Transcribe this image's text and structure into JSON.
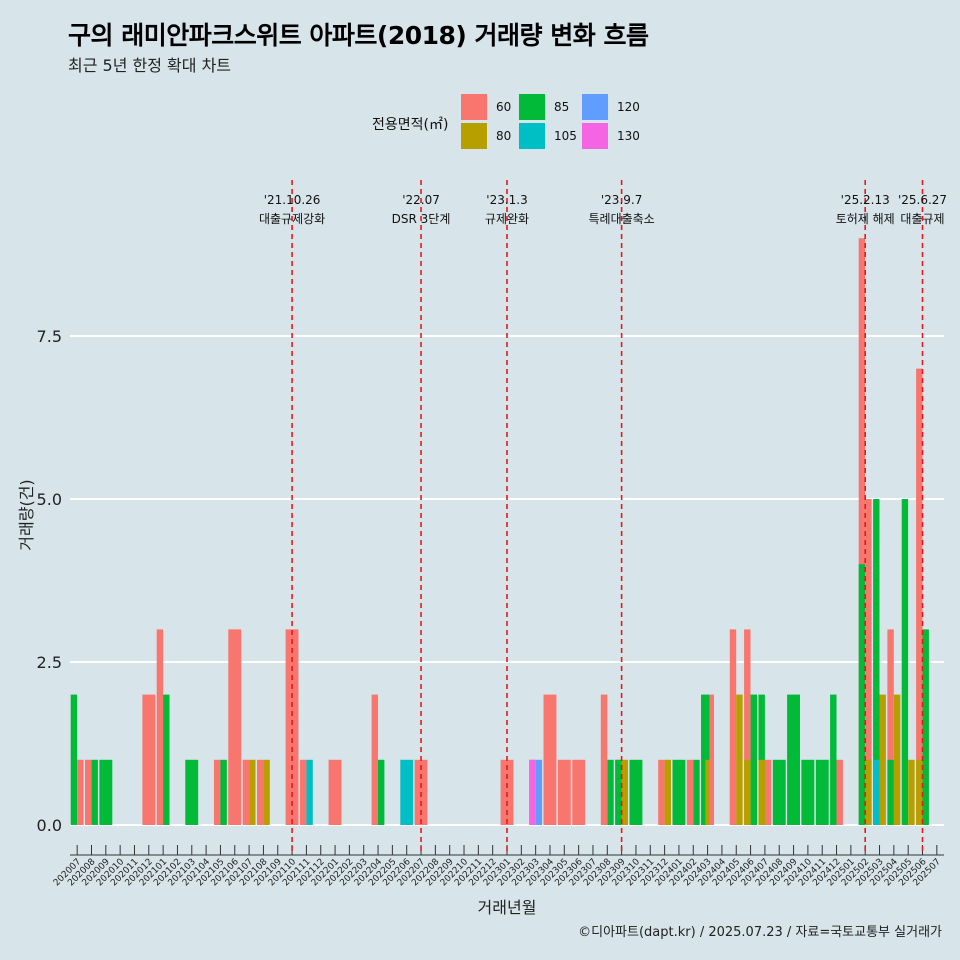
{
  "title": "구의 래미안파크스위트 아파트(2018) 거래량 변화 흐름",
  "subtitle": "최근 5년 한정 확대 차트",
  "caption": "©디아파트(dapt.kr) / 2025.07.23 / 자료=국토교통부 실거래가",
  "legend": {
    "title": "전용면적(㎡)",
    "items": [
      {
        "label": "60",
        "color": "#F8766D"
      },
      {
        "label": "80",
        "color": "#B79F00"
      },
      {
        "label": "85",
        "color": "#00BA38"
      },
      {
        "label": "105",
        "color": "#00BFC4"
      },
      {
        "label": "120",
        "color": "#619CFF"
      },
      {
        "label": "130",
        "color": "#F564E3"
      }
    ]
  },
  "chart_data": {
    "type": "bar",
    "xlabel": "거래년월",
    "ylabel": "거래량(건)",
    "ylim": [
      0,
      9
    ],
    "yticks": [
      0,
      2.5,
      5,
      7.5
    ],
    "ytick_labels": [
      "0.0",
      "2.5",
      "5.0",
      "7.5"
    ],
    "grid": true,
    "legend_position": "top",
    "categories": [
      "202007",
      "202008",
      "202009",
      "202010",
      "202011",
      "202012",
      "202101",
      "202102",
      "202103",
      "202104",
      "202105",
      "202106",
      "202107",
      "202108",
      "202109",
      "202110",
      "202111",
      "202112",
      "202201",
      "202202",
      "202203",
      "202204",
      "202205",
      "202206",
      "202207",
      "202208",
      "202209",
      "202210",
      "202211",
      "202212",
      "202301",
      "202302",
      "202303",
      "202304",
      "202305",
      "202306",
      "202307",
      "202308",
      "202309",
      "202310",
      "202311",
      "202312",
      "202401",
      "202402",
      "202403",
      "202404",
      "202405",
      "202406",
      "202407",
      "202408",
      "202409",
      "202410",
      "202411",
      "202412",
      "202501",
      "202502",
      "202503",
      "202504",
      "202505",
      "202506",
      "202507"
    ],
    "bars": [
      {
        "month": "202007",
        "segments": [
          {
            "area": "60",
            "count": 1
          },
          {
            "area": "85",
            "count": 2
          }
        ]
      },
      {
        "month": "202008",
        "segments": [
          {
            "area": "60",
            "count": 1
          },
          {
            "area": "85",
            "count": 1
          }
        ]
      },
      {
        "month": "202009",
        "segments": [
          {
            "area": "85",
            "count": 1
          }
        ]
      },
      {
        "month": "202012",
        "segments": [
          {
            "area": "60",
            "count": 2
          }
        ]
      },
      {
        "month": "202101",
        "segments": [
          {
            "area": "60",
            "count": 3
          },
          {
            "area": "85",
            "count": 2
          }
        ]
      },
      {
        "month": "202103",
        "segments": [
          {
            "area": "85",
            "count": 1
          }
        ]
      },
      {
        "month": "202105",
        "segments": [
          {
            "area": "60",
            "count": 1
          },
          {
            "area": "85",
            "count": 1
          }
        ]
      },
      {
        "month": "202106",
        "segments": [
          {
            "area": "60",
            "count": 3
          }
        ]
      },
      {
        "month": "202107",
        "segments": [
          {
            "area": "60",
            "count": 1
          },
          {
            "area": "80",
            "count": 1
          }
        ]
      },
      {
        "month": "202108",
        "segments": [
          {
            "area": "60",
            "count": 1
          },
          {
            "area": "80",
            "count": 1
          }
        ]
      },
      {
        "month": "202110",
        "segments": [
          {
            "area": "60",
            "count": 3
          }
        ]
      },
      {
        "month": "202111",
        "segments": [
          {
            "area": "60",
            "count": 1
          },
          {
            "area": "105",
            "count": 1
          }
        ]
      },
      {
        "month": "202201",
        "segments": [
          {
            "area": "60",
            "count": 1
          }
        ]
      },
      {
        "month": "202204",
        "segments": [
          {
            "area": "60",
            "count": 2
          },
          {
            "area": "85",
            "count": 1
          }
        ]
      },
      {
        "month": "202206",
        "segments": [
          {
            "area": "105",
            "count": 1
          }
        ]
      },
      {
        "month": "202207",
        "segments": [
          {
            "area": "60",
            "count": 1
          }
        ]
      },
      {
        "month": "202301",
        "segments": [
          {
            "area": "60",
            "count": 1
          }
        ]
      },
      {
        "month": "202303",
        "segments": [
          {
            "area": "60",
            "count": 1
          },
          {
            "area": "120",
            "count": 1
          },
          {
            "area": "130",
            "count": 1
          }
        ]
      },
      {
        "month": "202304",
        "segments": [
          {
            "area": "60",
            "count": 2
          }
        ]
      },
      {
        "month": "202305",
        "segments": [
          {
            "area": "60",
            "count": 1
          }
        ]
      },
      {
        "month": "202306",
        "segments": [
          {
            "area": "60",
            "count": 1
          }
        ]
      },
      {
        "month": "202308",
        "segments": [
          {
            "area": "60",
            "count": 2
          },
          {
            "area": "85",
            "count": 1
          }
        ]
      },
      {
        "month": "202309",
        "segments": [
          {
            "area": "60",
            "count": 1
          },
          {
            "area": "80",
            "count": 1
          },
          {
            "area": "85",
            "count": 1
          }
        ]
      },
      {
        "month": "202310",
        "segments": [
          {
            "area": "85",
            "count": 1
          }
        ]
      },
      {
        "month": "202312",
        "segments": [
          {
            "area": "60",
            "count": 1
          },
          {
            "area": "80",
            "count": 1
          }
        ]
      },
      {
        "month": "202401",
        "segments": [
          {
            "area": "85",
            "count": 1
          }
        ]
      },
      {
        "month": "202402",
        "segments": [
          {
            "area": "60",
            "count": 1
          },
          {
            "area": "85",
            "count": 1
          }
        ]
      },
      {
        "month": "202403",
        "segments": [
          {
            "area": "60",
            "count": 2
          },
          {
            "area": "85",
            "count": 2
          },
          {
            "area": "60",
            "count": 2
          },
          {
            "area": "80",
            "count": 1
          },
          {
            "area": "85",
            "count": 2
          }
        ]
      },
      {
        "month": "202405",
        "segments": [
          {
            "area": "60",
            "count": 1
          },
          {
            "area": "80",
            "count": 2
          },
          {
            "area": "60",
            "count": 3
          }
        ]
      },
      {
        "month": "202406",
        "segments": [
          {
            "area": "85",
            "count": 2
          },
          {
            "area": "60",
            "count": 3
          },
          {
            "area": "80",
            "count": 1
          }
        ]
      },
      {
        "month": "202407",
        "segments": [
          {
            "area": "85",
            "count": 2
          },
          {
            "area": "60",
            "count": 1
          },
          {
            "area": "80",
            "count": 1
          }
        ]
      },
      {
        "month": "202408",
        "segments": [
          {
            "area": "85",
            "count": 1
          }
        ]
      },
      {
        "month": "202409",
        "segments": [
          {
            "area": "85",
            "count": 2
          }
        ]
      },
      {
        "month": "202410",
        "segments": [
          {
            "area": "85",
            "count": 1
          }
        ]
      },
      {
        "month": "202411",
        "segments": [
          {
            "area": "85",
            "count": 1
          }
        ]
      },
      {
        "month": "202412",
        "segments": [
          {
            "area": "60",
            "count": 1
          },
          {
            "area": "85",
            "count": 2
          }
        ]
      },
      {
        "month": "202502",
        "segments": [
          {
            "area": "60",
            "count": 5
          },
          {
            "area": "80",
            "count": 1
          },
          {
            "area": "60",
            "count": 9
          },
          {
            "area": "85",
            "count": 4
          }
        ]
      },
      {
        "month": "202503",
        "segments": [
          {
            "area": "80",
            "count": 2
          },
          {
            "area": "85",
            "count": 5
          },
          {
            "area": "105",
            "count": 1
          }
        ]
      },
      {
        "month": "202504",
        "segments": [
          {
            "area": "60",
            "count": 3
          },
          {
            "area": "80",
            "count": 2
          },
          {
            "area": "85",
            "count": 1
          }
        ]
      },
      {
        "month": "202505",
        "segments": [
          {
            "area": "80",
            "count": 1
          },
          {
            "area": "85",
            "count": 5
          }
        ]
      },
      {
        "month": "202506",
        "segments": [
          {
            "area": "60",
            "count": 7
          },
          {
            "area": "80",
            "count": 1
          },
          {
            "area": "85",
            "count": 3
          }
        ]
      }
    ],
    "events": [
      {
        "month": "202110",
        "date": "'21.10.26",
        "label": "대출규제강화"
      },
      {
        "month": "202207",
        "date": "'22.07",
        "label": "DSR 3단계"
      },
      {
        "month": "202301",
        "date": "'23.1.3",
        "label": "규제완화"
      },
      {
        "month": "202309",
        "date": "'23.9.7",
        "label": "특례대출축소"
      },
      {
        "month": "202502",
        "date": "'25.2.13",
        "label": "토허제 해제"
      },
      {
        "month": "202506",
        "date": "'25.6.27",
        "label": "대출규제"
      }
    ]
  }
}
